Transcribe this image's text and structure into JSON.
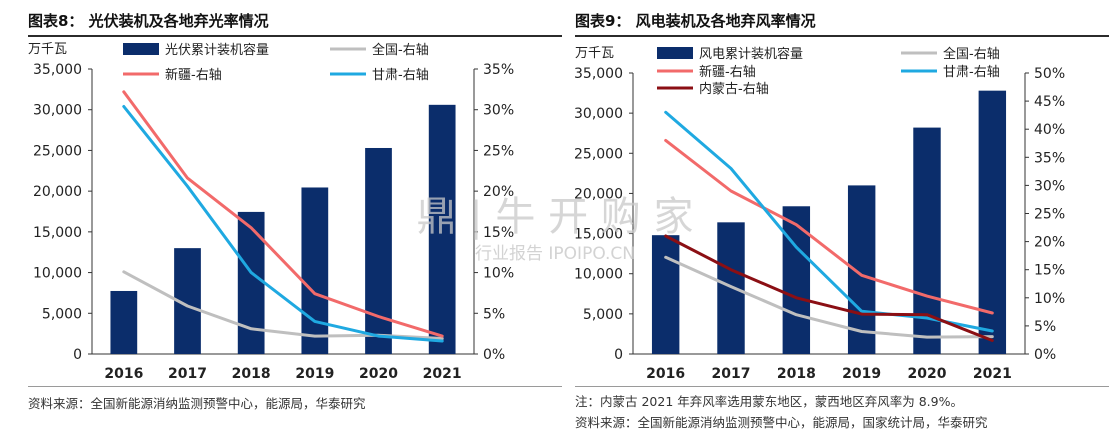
{
  "charts": [
    {
      "title": "图表8：  光伏装机及各地弃光率情况",
      "source": "资料来源：全国新能源消纳监测预警中心，能源局，华泰研究",
      "note": "",
      "chart_data": {
        "type": "bar+line",
        "unit_left": "万千瓦",
        "categories": [
          "2016",
          "2017",
          "2018",
          "2019",
          "2020",
          "2021"
        ],
        "bar_series": {
          "name": "光伏累计装机容量",
          "values": [
            7740,
            13000,
            17450,
            20450,
            25300,
            30600
          ],
          "color": "#0b2d6b"
        },
        "line_series": [
          {
            "name": "全国-右轴",
            "values": [
              10.1,
              5.9,
              3.1,
              2.2,
              2.3,
              1.9
            ],
            "color": "#bfbfbf"
          },
          {
            "name": "新疆-右轴",
            "values": [
              32.2,
              21.6,
              15.5,
              7.4,
              4.6,
              2.2
            ],
            "color": "#f26a6a"
          },
          {
            "name": "甘肃-右轴",
            "values": [
              30.4,
              20.6,
              10.0,
              4.0,
              2.2,
              1.6
            ],
            "color": "#1fa9e1"
          }
        ],
        "y_left": {
          "min": 0,
          "max": 35000,
          "step": 5000,
          "ticks": [
            "0",
            "5,000",
            "10,000",
            "15,000",
            "20,000",
            "25,000",
            "30,000",
            "35,000"
          ]
        },
        "y_right": {
          "min": 0,
          "max": 35,
          "step": 5,
          "ticks": [
            "0%",
            "5%",
            "10%",
            "15%",
            "20%",
            "25%",
            "30%",
            "35%"
          ]
        },
        "legend": "top",
        "grid": false
      }
    },
    {
      "title": "图表9：  风电装机及各地弃风率情况",
      "source": "资料来源：全国新能源消纳监测预警中心，能源局，国家统计局，华泰研究",
      "note": "注：内蒙古 2021 年弃风率选用蒙东地区，蒙西地区弃风率为 8.9%。",
      "chart_data": {
        "type": "bar+line",
        "unit_left": "万千瓦",
        "categories": [
          "2016",
          "2017",
          "2018",
          "2019",
          "2020",
          "2021"
        ],
        "bar_series": {
          "name": "风电累计装机容量",
          "values": [
            14800,
            16400,
            18400,
            21000,
            28200,
            32800
          ],
          "color": "#0b2d6b"
        },
        "line_series": [
          {
            "name": "全国-右轴",
            "values": [
              17.2,
              12.0,
              7.0,
              4.0,
              3.0,
              3.1
            ],
            "color": "#bfbfbf"
          },
          {
            "name": "新疆-右轴",
            "values": [
              38.0,
              29.0,
              23.0,
              14.0,
              10.3,
              7.3
            ],
            "color": "#f26a6a"
          },
          {
            "name": "甘肃-右轴",
            "values": [
              43.0,
              33.0,
              19.0,
              7.6,
              6.4,
              4.1
            ],
            "color": "#1fa9e1"
          },
          {
            "name": "内蒙古-右轴",
            "values": [
              21.0,
              15.0,
              10.0,
              7.1,
              7.0,
              2.4
            ],
            "color": "#8b0f14"
          }
        ],
        "y_left": {
          "min": 0,
          "max": 35000,
          "step": 5000,
          "ticks": [
            "0",
            "5,000",
            "10,000",
            "15,000",
            "20,000",
            "25,000",
            "30,000",
            "35,000"
          ]
        },
        "y_right": {
          "min": 0,
          "max": 50,
          "step": 5,
          "ticks": [
            "0%",
            "5%",
            "10%",
            "15%",
            "20%",
            "25%",
            "30%",
            "35%",
            "40%",
            "45%",
            "50%"
          ]
        },
        "legend": "top",
        "grid": false
      }
    }
  ],
  "watermark": {
    "main": "鼎 | 牛 开 购 家",
    "sub": "行业报告 IPOIPO.CN"
  },
  "colors": {
    "bar": "#0b2d6b",
    "title_rule": "#2b2b2b"
  }
}
